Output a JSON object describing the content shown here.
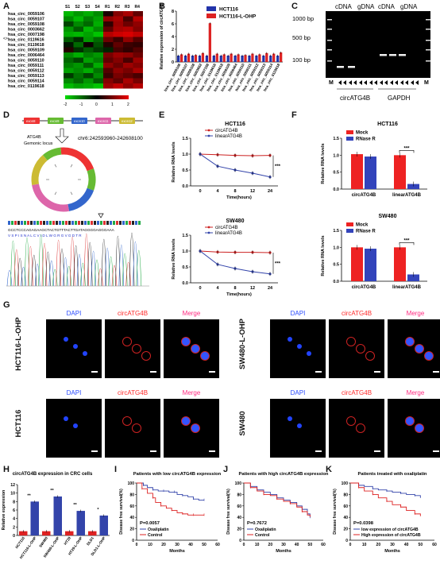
{
  "panels": {
    "A": "A",
    "B": "B",
    "C": "C",
    "D": "D",
    "E": "E",
    "F": "F",
    "G": "G",
    "H": "H",
    "I": "I",
    "J": "J",
    "K": "K"
  },
  "heatmap": {
    "rows": [
      "hsa_circ_0059106",
      "hsa_circ_0059107",
      "hsa_circ_0059108",
      "hsa_circ_0003662",
      "hsa_circ_0007198",
      "hsa_circ_0119616",
      "hsa_circ_0119618",
      "hsa_circ_0059109",
      "hsa_circ_0006464",
      "hsa_circ_0059110",
      "hsa_circ_0059111",
      "hsa_circ_0059112",
      "hsa_circ_0059113",
      "hsa_circ_0059114",
      "hsa_circ_0119618"
    ],
    "cols": [
      "S1",
      "S2",
      "S3",
      "S4",
      "R1",
      "R2",
      "R3",
      "R4"
    ],
    "marker": "<>",
    "scale": [
      "-2",
      "-1",
      "0",
      "1",
      "2"
    ],
    "values": [
      [
        -1.6,
        -1.3,
        -1.5,
        -1.2,
        0.2,
        1.1,
        1.4,
        0.8
      ],
      [
        -1.2,
        -1.6,
        -1.1,
        -1.4,
        1.2,
        1.4,
        0.6,
        1.5
      ],
      [
        -0.6,
        -1.2,
        -0.9,
        -1.5,
        0.4,
        1.3,
        0.9,
        1.2
      ],
      [
        -1.3,
        -0.8,
        -1.6,
        -1.2,
        0.8,
        1.4,
        1.5,
        1.1
      ],
      [
        -1.5,
        -1.6,
        -1.4,
        -1.7,
        1.5,
        1.7,
        1.8,
        1.6
      ],
      [
        -0.8,
        -0.4,
        -1.3,
        -0.9,
        0.9,
        0.5,
        1.2,
        0.7
      ],
      [
        -0.2,
        -0.9,
        0.1,
        -0.7,
        0.3,
        0.8,
        0.5,
        0.4
      ],
      [
        0.3,
        -0.4,
        -0.8,
        -0.5,
        -0.3,
        0.6,
        0.4,
        0.7
      ],
      [
        -1.2,
        -1.5,
        -1.1,
        -1.3,
        1.0,
        1.3,
        1.2,
        0.9
      ],
      [
        -0.9,
        -0.6,
        -1.4,
        -1.1,
        0.8,
        1.1,
        0.6,
        1.3
      ],
      [
        -1.1,
        -1.3,
        -0.8,
        -1.5,
        1.2,
        0.9,
        1.3,
        1.1
      ],
      [
        -1.4,
        -1.2,
        -1.5,
        -1.0,
        0.7,
        1.2,
        1.0,
        1.4
      ],
      [
        -0.5,
        -1.0,
        -0.6,
        -1.2,
        0.5,
        1.0,
        0.8,
        0.6
      ],
      [
        -1.2,
        -0.9,
        -1.3,
        -0.8,
        1.1,
        0.8,
        1.4,
        1.0
      ],
      [
        -1.6,
        -1.4,
        -1.5,
        -1.7,
        1.3,
        1.6,
        1.2,
        1.5
      ]
    ]
  },
  "chart_data": [
    {
      "id": "B",
      "type": "bar",
      "ylabel": "Relative expression of circATG4B",
      "ylim": [
        0,
        8
      ],
      "yticks": [
        "0",
        "2",
        "4",
        "6",
        "8"
      ],
      "categories": [
        "hsa_circ_0059106",
        "hsa_circ_0059107",
        "hsa_circ_0059108",
        "hsa_circ_0003662",
        "hsa_circ_0007198",
        "hsa_circ_0119616",
        "hsa_circ_0119618",
        "hsa_circ_0059109",
        "hsa_circ_0006464",
        "hsa_circ_0059110",
        "hsa_circ_0059111",
        "hsa_circ_0059112",
        "hsa_circ_0059113",
        "hsa_circ_0059114",
        "hsa_circ_0119618"
      ],
      "series": [
        {
          "name": "HCT116",
          "color": "#2233aa",
          "values": [
            1,
            1,
            1,
            1,
            1,
            1,
            1,
            1,
            1,
            1,
            1,
            1,
            1,
            1,
            1
          ]
        },
        {
          "name": "HCT116-L-OHP",
          "color": "#dd2222",
          "values": [
            1.2,
            1.3,
            1.1,
            1.4,
            6.1,
            1.3,
            1.2,
            1.3,
            1.2,
            1.1,
            1.3,
            1.2,
            1.4,
            1.3,
            1.5
          ]
        }
      ]
    },
    {
      "id": "E1",
      "type": "line",
      "title": "HCT116",
      "xlabel": "Time(hours)",
      "ylabel": "Relative RNA levels",
      "x": [
        "0",
        "4",
        "8",
        "12",
        "24"
      ],
      "ylim": [
        0,
        1.5
      ],
      "yticks": [
        "0.0",
        "0.5",
        "1.0",
        "1.5"
      ],
      "sig": "***",
      "series": [
        {
          "name": "circATG4B",
          "color": "#cc2222",
          "values": [
            1.0,
            0.98,
            0.96,
            0.95,
            0.96
          ]
        },
        {
          "name": "linearATG4B",
          "color": "#3344aa",
          "values": [
            1.0,
            0.62,
            0.5,
            0.4,
            0.28
          ]
        }
      ]
    },
    {
      "id": "E2",
      "type": "line",
      "title": "SW480",
      "xlabel": "Time(hours)",
      "ylabel": "Relative RNA levels",
      "x": [
        "0",
        "4",
        "8",
        "12",
        "24"
      ],
      "ylim": [
        0,
        1.5
      ],
      "yticks": [
        "0.0",
        "0.5",
        "1.0",
        "1.5"
      ],
      "sig": "***",
      "series": [
        {
          "name": "circATG4B",
          "color": "#cc2222",
          "values": [
            1.0,
            0.97,
            0.96,
            0.96,
            0.95
          ]
        },
        {
          "name": "linearATG4B",
          "color": "#3344aa",
          "values": [
            1.0,
            0.58,
            0.45,
            0.35,
            0.28
          ]
        }
      ]
    },
    {
      "id": "F1",
      "type": "bar",
      "title": "HCT116",
      "ylabel": "Relative RNA levels",
      "categories": [
        "circATG4B",
        "linearATG4B"
      ],
      "ylim": [
        0,
        1.5
      ],
      "yticks": [
        "0.0",
        "0.5",
        "1.0",
        "1.5"
      ],
      "sig": "***",
      "series": [
        {
          "name": "Mock",
          "color": "#ee2222",
          "values": [
            1.03,
            1.0
          ]
        },
        {
          "name": "RNase R",
          "color": "#3344bb",
          "values": [
            0.96,
            0.15
          ]
        }
      ]
    },
    {
      "id": "F2",
      "type": "bar",
      "title": "SW480",
      "ylabel": "Relative RNA levels",
      "categories": [
        "circATG4B",
        "linearATG4B"
      ],
      "ylim": [
        0,
        1.5
      ],
      "yticks": [
        "0.0",
        "0.5",
        "1.0",
        "1.5"
      ],
      "sig": "***",
      "series": [
        {
          "name": "Mock",
          "color": "#ee2222",
          "values": [
            1.0,
            1.0
          ]
        },
        {
          "name": "RNase R",
          "color": "#3344bb",
          "values": [
            0.96,
            0.2
          ]
        }
      ]
    },
    {
      "id": "H",
      "type": "bar",
      "title": "circATG4B expression in CRC cells",
      "ylabel": "Relative expression",
      "ylim": [
        0,
        12
      ],
      "yticks": [
        "0",
        "2",
        "4",
        "6",
        "8",
        "10",
        "12"
      ],
      "categories": [
        "HCT116",
        "HCT116-L-OHP",
        "SW480",
        "SW480-L-OHP",
        "HT29",
        "HT29-L-OHP",
        "DLD1",
        "DLD1-L-OHP"
      ],
      "values": [
        1,
        8,
        1,
        9.2,
        1,
        5.8,
        1,
        4.7
      ],
      "colors": [
        "#dd2222",
        "#3344aa",
        "#dd2222",
        "#3344aa",
        "#dd2222",
        "#3344aa",
        "#dd2222",
        "#3344aa"
      ],
      "sig": [
        "**",
        "**",
        "**",
        "*"
      ]
    },
    {
      "id": "I",
      "type": "line",
      "title": "Patients with low circATG4B expression",
      "xlabel": "Months",
      "ylabel": "Disease free survival(%)",
      "xlim": [
        0,
        60
      ],
      "ylim": [
        0,
        100
      ],
      "xticks": [
        "0",
        "10",
        "20",
        "30",
        "40",
        "50",
        "60"
      ],
      "yticks": [
        "0",
        "20",
        "40",
        "60",
        "80",
        "100"
      ],
      "pvalue": "P=0.0057",
      "series": [
        {
          "name": "Oxaliplatin",
          "color": "#3344aa",
          "x": [
            0,
            5,
            8,
            12,
            16,
            20,
            24,
            28,
            30,
            34,
            38,
            42,
            46,
            50
          ],
          "values": [
            100,
            96,
            92,
            88,
            86,
            86,
            84,
            84,
            80,
            78,
            76,
            72,
            70,
            70
          ]
        },
        {
          "name": "Control",
          "color": "#dd2222",
          "x": [
            0,
            4,
            8,
            12,
            14,
            18,
            22,
            26,
            30,
            34,
            38,
            42,
            46,
            50
          ],
          "values": [
            100,
            90,
            82,
            74,
            66,
            60,
            56,
            52,
            48,
            46,
            44,
            44,
            44,
            44
          ]
        }
      ]
    },
    {
      "id": "J",
      "type": "line",
      "title": "Patients with high circATG4B expression",
      "xlabel": "Months",
      "ylabel": "Disease free survival(%)",
      "xlim": [
        0,
        60
      ],
      "ylim": [
        0,
        100
      ],
      "xticks": [
        "0",
        "10",
        "20",
        "30",
        "40",
        "50",
        "60"
      ],
      "yticks": [
        "0",
        "20",
        "40",
        "60",
        "80",
        "100"
      ],
      "pvalue": "P=0.7672",
      "series": [
        {
          "name": "Oxaliplatin",
          "color": "#3344aa",
          "x": [
            0,
            5,
            10,
            15,
            20,
            25,
            30,
            35,
            40,
            44,
            48,
            50
          ],
          "values": [
            100,
            94,
            88,
            84,
            80,
            74,
            70,
            66,
            60,
            54,
            46,
            40
          ]
        },
        {
          "name": "Control",
          "color": "#dd2222",
          "x": [
            0,
            5,
            10,
            15,
            20,
            25,
            30,
            35,
            40,
            44,
            48,
            50
          ],
          "values": [
            100,
            92,
            86,
            80,
            78,
            72,
            68,
            64,
            58,
            50,
            44,
            42
          ]
        }
      ]
    },
    {
      "id": "K",
      "type": "line",
      "title": "Patients treated with oxaliplatin",
      "xlabel": "Months",
      "ylabel": "Disease free survival(%)",
      "xlim": [
        0,
        60
      ],
      "ylim": [
        0,
        100
      ],
      "xticks": [
        "0",
        "10",
        "20",
        "30",
        "40",
        "50",
        "60"
      ],
      "yticks": [
        "0",
        "20",
        "40",
        "60",
        "80",
        "100"
      ],
      "pvalue": "P=0.0398",
      "series": [
        {
          "name": "low expression of circATG4B",
          "color": "#3344aa",
          "x": [
            0,
            6,
            10,
            16,
            20,
            26,
            30,
            36,
            40,
            46,
            50
          ],
          "values": [
            100,
            96,
            94,
            90,
            88,
            86,
            84,
            82,
            80,
            78,
            74
          ]
        },
        {
          "name": "High expression of circATG4B",
          "color": "#dd2222",
          "x": [
            0,
            6,
            10,
            16,
            20,
            26,
            30,
            36,
            40,
            46,
            50
          ],
          "values": [
            100,
            92,
            86,
            80,
            74,
            68,
            62,
            58,
            52,
            46,
            42
          ]
        }
      ]
    }
  ],
  "gel": {
    "top": [
      "cDNA",
      "gDNA",
      "cDNA",
      "gDNA"
    ],
    "ladder": [
      "1000 bp",
      "500 bp",
      "100 bp"
    ],
    "markers": [
      "M",
      "M"
    ],
    "groups": [
      "circATG4B",
      "GAPDH"
    ]
  },
  "schematic": {
    "exons": [
      "exon8",
      "exon9",
      "exon10",
      "exon11",
      "exon12"
    ],
    "gene": "ATG4B",
    "locus_label": "Gemonic locus",
    "coords": "chr6:242593960-242608100",
    "seq_top": "GCCTCCCAGAGAAGCTACTGTTTACTTGATAGGGGAGGGAAA",
    "seq_bot": "V S P I S N A L C V I D L W G R G V G D T R",
    "exon_colors": [
      "#ee3333",
      "#66bb33",
      "#3366cc",
      "#dd66aa",
      "#ccbb33"
    ]
  },
  "microscopy": {
    "rows": [
      {
        "label": "HCT116-L-OHP",
        "cols": [
          "DAPI",
          "circATG4B",
          "Merge"
        ]
      },
      {
        "label": "HCT116",
        "cols": [
          "DAPI",
          "circATG4B",
          "Merge"
        ]
      },
      {
        "label": "SW480-L-OHP",
        "cols": [
          "DAPI",
          "circATG4B",
          "Merge"
        ]
      },
      {
        "label": "SW480",
        "cols": [
          "DAPI",
          "circATG4B",
          "Merge"
        ]
      }
    ]
  }
}
